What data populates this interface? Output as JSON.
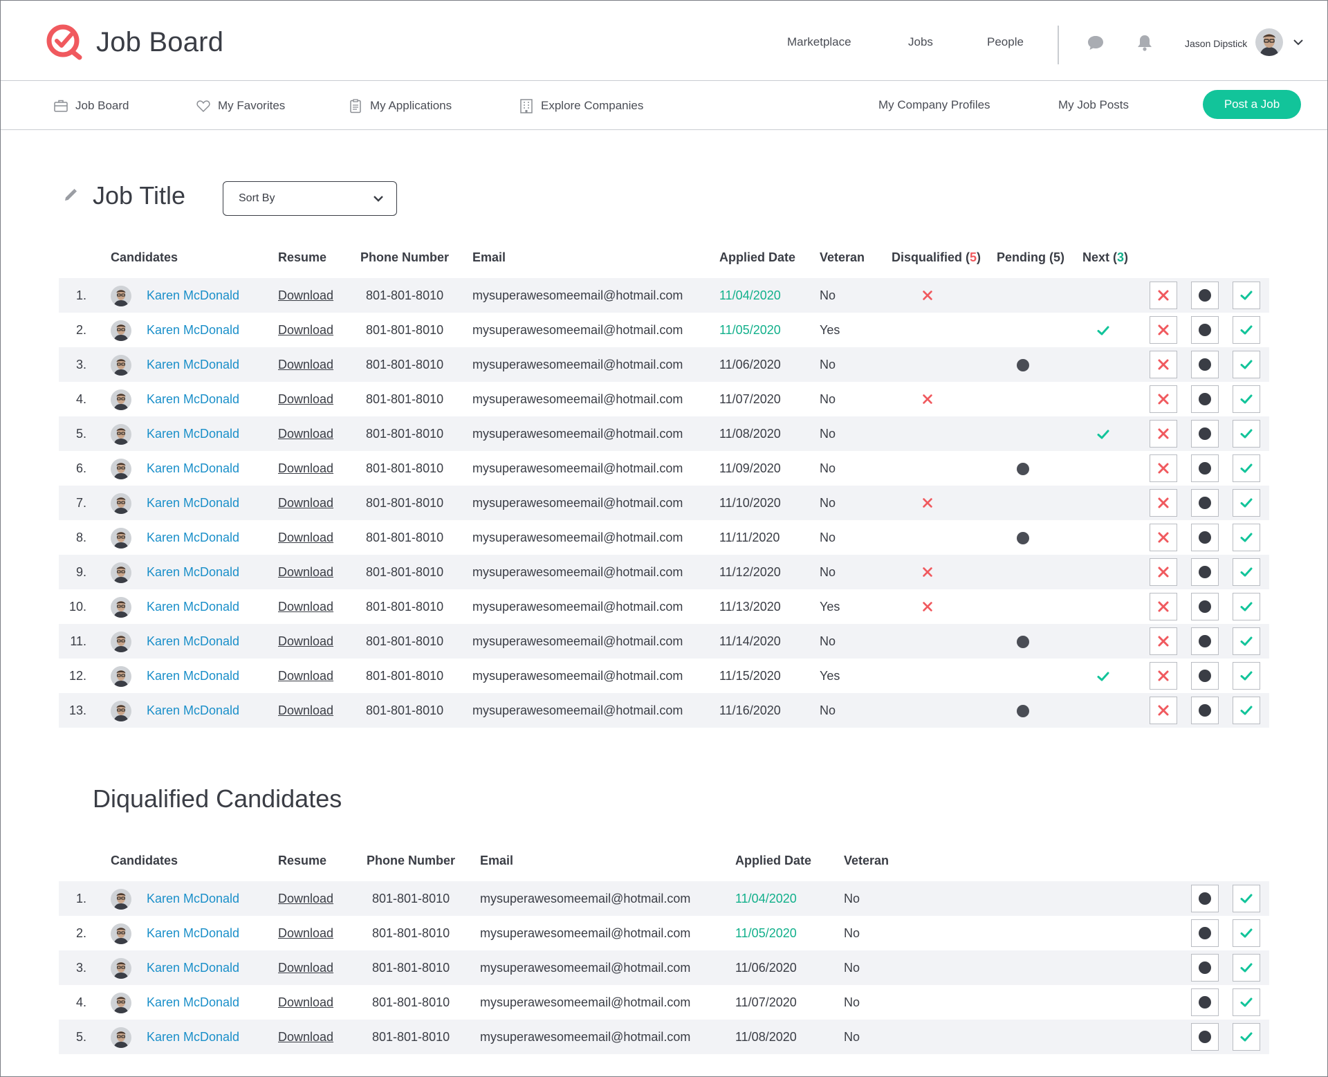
{
  "header": {
    "logo_text": "Job Board",
    "nav": [
      "Marketplace",
      "Jobs",
      "People"
    ],
    "user_name": "Jason Dipstick"
  },
  "subnav": {
    "items": [
      "Job Board",
      "My Favorites",
      "My Applications",
      "Explore Companies"
    ],
    "right_links": [
      "My Company Profiles",
      "My Job Posts"
    ],
    "post_button": "Post a Job"
  },
  "page": {
    "title": "Job Title",
    "sort_label": "Sort By",
    "section_disqualified": "Diqualified Candidates"
  },
  "colors": {
    "accent": "#12c49a",
    "link": "#1a8fc9",
    "reject": "#f0595e",
    "row_alt": "#f2f3f6"
  },
  "table": {
    "headers": {
      "candidates": "Candidates",
      "resume": "Resume",
      "phone": "Phone Number",
      "email": "Email",
      "applied": "Applied Date",
      "veteran": "Veteran",
      "disqualified": "Disqualified",
      "disqualified_count": "5",
      "pending": "Pending (5)",
      "next": "Next",
      "next_count": "3"
    },
    "rows": [
      {
        "n": "1.",
        "name": "Karen McDonald",
        "resume": "Download",
        "phone": "801-801-8010",
        "email": "mysuperawesomeemail@hotmail.com",
        "date": "11/04/2020",
        "date_highlight": true,
        "veteran": "No",
        "status": "disqualified"
      },
      {
        "n": "2.",
        "name": "Karen McDonald",
        "resume": "Download",
        "phone": "801-801-8010",
        "email": "mysuperawesomeemail@hotmail.com",
        "date": "11/05/2020",
        "date_highlight": true,
        "veteran": "Yes",
        "status": "next"
      },
      {
        "n": "3.",
        "name": "Karen McDonald",
        "resume": "Download",
        "phone": "801-801-8010",
        "email": "mysuperawesomeemail@hotmail.com",
        "date": "11/06/2020",
        "date_highlight": false,
        "veteran": "No",
        "status": "pending"
      },
      {
        "n": "4.",
        "name": "Karen McDonald",
        "resume": "Download",
        "phone": "801-801-8010",
        "email": "mysuperawesomeemail@hotmail.com",
        "date": "11/07/2020",
        "date_highlight": false,
        "veteran": "No",
        "status": "disqualified"
      },
      {
        "n": "5.",
        "name": "Karen McDonald",
        "resume": "Download",
        "phone": "801-801-8010",
        "email": "mysuperawesomeemail@hotmail.com",
        "date": "11/08/2020",
        "date_highlight": false,
        "veteran": "No",
        "status": "next"
      },
      {
        "n": "6.",
        "name": "Karen McDonald",
        "resume": "Download",
        "phone": "801-801-8010",
        "email": "mysuperawesomeemail@hotmail.com",
        "date": "11/09/2020",
        "date_highlight": false,
        "veteran": "No",
        "status": "pending"
      },
      {
        "n": "7.",
        "name": "Karen McDonald",
        "resume": "Download",
        "phone": "801-801-8010",
        "email": "mysuperawesomeemail@hotmail.com",
        "date": "11/10/2020",
        "date_highlight": false,
        "veteran": "No",
        "status": "disqualified"
      },
      {
        "n": "8.",
        "name": "Karen McDonald",
        "resume": "Download",
        "phone": "801-801-8010",
        "email": "mysuperawesomeemail@hotmail.com",
        "date": "11/11/2020",
        "date_highlight": false,
        "veteran": "No",
        "status": "pending"
      },
      {
        "n": "9.",
        "name": "Karen McDonald",
        "resume": "Download",
        "phone": "801-801-8010",
        "email": "mysuperawesomeemail@hotmail.com",
        "date": "11/12/2020",
        "date_highlight": false,
        "veteran": "No",
        "status": "disqualified"
      },
      {
        "n": "10.",
        "name": "Karen McDonald",
        "resume": "Download",
        "phone": "801-801-8010",
        "email": "mysuperawesomeemail@hotmail.com",
        "date": "11/13/2020",
        "date_highlight": false,
        "veteran": "Yes",
        "status": "disqualified"
      },
      {
        "n": "11.",
        "name": "Karen McDonald",
        "resume": "Download",
        "phone": "801-801-8010",
        "email": "mysuperawesomeemail@hotmail.com",
        "date": "11/14/2020",
        "date_highlight": false,
        "veteran": "No",
        "status": "pending"
      },
      {
        "n": "12.",
        "name": "Karen McDonald",
        "resume": "Download",
        "phone": "801-801-8010",
        "email": "mysuperawesomeemail@hotmail.com",
        "date": "11/15/2020",
        "date_highlight": false,
        "veteran": "Yes",
        "status": "next"
      },
      {
        "n": "13.",
        "name": "Karen McDonald",
        "resume": "Download",
        "phone": "801-801-8010",
        "email": "mysuperawesomeemail@hotmail.com",
        "date": "11/16/2020",
        "date_highlight": false,
        "veteran": "No",
        "status": "pending"
      }
    ]
  },
  "disqualified_table": {
    "headers": {
      "candidates": "Candidates",
      "resume": "Resume",
      "phone": "Phone Number",
      "email": "Email",
      "applied": "Applied Date",
      "veteran": "Veteran"
    },
    "rows": [
      {
        "n": "1.",
        "name": "Karen McDonald",
        "resume": "Download",
        "phone": "801-801-8010",
        "email": "mysuperawesomeemail@hotmail.com",
        "date": "11/04/2020",
        "date_highlight": true,
        "veteran": "No"
      },
      {
        "n": "2.",
        "name": "Karen McDonald",
        "resume": "Download",
        "phone": "801-801-8010",
        "email": "mysuperawesomeemail@hotmail.com",
        "date": "11/05/2020",
        "date_highlight": true,
        "veteran": "No"
      },
      {
        "n": "3.",
        "name": "Karen McDonald",
        "resume": "Download",
        "phone": "801-801-8010",
        "email": "mysuperawesomeemail@hotmail.com",
        "date": "11/06/2020",
        "date_highlight": false,
        "veteran": "No"
      },
      {
        "n": "4.",
        "name": "Karen McDonald",
        "resume": "Download",
        "phone": "801-801-8010",
        "email": "mysuperawesomeemail@hotmail.com",
        "date": "11/07/2020",
        "date_highlight": false,
        "veteran": "No"
      },
      {
        "n": "5.",
        "name": "Karen McDonald",
        "resume": "Download",
        "phone": "801-801-8010",
        "email": "mysuperawesomeemail@hotmail.com",
        "date": "11/08/2020",
        "date_highlight": false,
        "veteran": "No"
      }
    ]
  }
}
